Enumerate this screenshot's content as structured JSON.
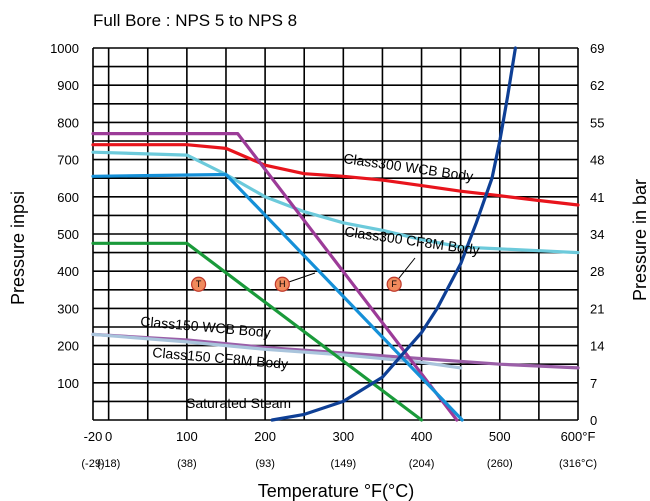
{
  "chart_data": {
    "type": "line",
    "title": "Full Bore : NPS 5 to NPS 8",
    "xlabel": "Temperature °F(°C)",
    "ylabel_left": "Pressure inpsi",
    "ylabel_right": "Pressure in bar",
    "xlim": [
      -20,
      600
    ],
    "ylim": [
      0,
      1000
    ],
    "x_ticks": [
      {
        "value": -20,
        "label": "-20",
        "sub": "(-29)"
      },
      {
        "value": 0,
        "label": "0",
        "sub": "(-18)"
      },
      {
        "value": 100,
        "label": "100",
        "sub": "(38)"
      },
      {
        "value": 200,
        "label": "200",
        "sub": "(93)"
      },
      {
        "value": 300,
        "label": "300",
        "sub": "(149)"
      },
      {
        "value": 400,
        "label": "400",
        "sub": "(204)"
      },
      {
        "value": 500,
        "label": "500",
        "sub": "(260)"
      },
      {
        "value": 600,
        "label": "600°F",
        "sub": "(316°C)"
      }
    ],
    "y_ticks_left": [
      "1000",
      "900",
      "800",
      "700",
      "600",
      "500",
      "400",
      "300",
      "200",
      "100"
    ],
    "y_ticks_right": [
      "69",
      "62",
      "55",
      "48",
      "41",
      "34",
      "28",
      "21",
      "14",
      "7",
      "0"
    ],
    "grid": true,
    "series": [
      {
        "name": "Class300 WCB Body",
        "color": "#e8141c",
        "x": [
          -20,
          100,
          150,
          200,
          250,
          300,
          350,
          400,
          450,
          500,
          550,
          600
        ],
        "y": [
          740,
          740,
          730,
          685,
          662,
          655,
          645,
          630,
          615,
          603,
          590,
          578
        ]
      },
      {
        "name": "Class300 CF8M Body",
        "color": "#6ccadb",
        "x": [
          -20,
          100,
          150,
          200,
          250,
          300,
          350,
          400,
          450,
          500,
          550,
          600
        ],
        "y": [
          720,
          712,
          660,
          600,
          560,
          530,
          510,
          485,
          465,
          460,
          455,
          450
        ]
      },
      {
        "name": "Class150 WCB Body",
        "color": "#9b5fa8",
        "x": [
          -20,
          100,
          200,
          300,
          400,
          500,
          600
        ],
        "y": [
          230,
          215,
          195,
          180,
          165,
          150,
          140
        ]
      },
      {
        "name": "Class150 CF8M Body",
        "color": "#a9c4dc",
        "x": [
          -20,
          100,
          200,
          300,
          400,
          450
        ],
        "y": [
          230,
          210,
          190,
          175,
          155,
          140
        ]
      },
      {
        "name": "",
        "color": "#9c3b98",
        "x": [
          -20,
          165,
          445
        ],
        "y": [
          770,
          770,
          0
        ]
      },
      {
        "name": "",
        "color": "#1590d8",
        "x": [
          -20,
          150,
          452
        ],
        "y": [
          655,
          660,
          0
        ]
      },
      {
        "name": "",
        "color": "#1a9a3a",
        "x": [
          -20,
          100,
          400
        ],
        "y": [
          475,
          475,
          0
        ]
      },
      {
        "name": "Saturated Steam",
        "color": "#0e3f95",
        "x": [
          209,
          250,
          300,
          350,
          400,
          420,
          450,
          470,
          490,
          500,
          510,
          520
        ],
        "y": [
          0,
          15,
          50,
          115,
          235,
          300,
          420,
          530,
          650,
          750,
          870,
          1000
        ]
      }
    ],
    "markers": [
      {
        "label": "T",
        "x": 115,
        "y": 365
      },
      {
        "label": "H",
        "x": 222,
        "y": 365
      },
      {
        "label": "F",
        "x": 365,
        "y": 365
      }
    ]
  }
}
